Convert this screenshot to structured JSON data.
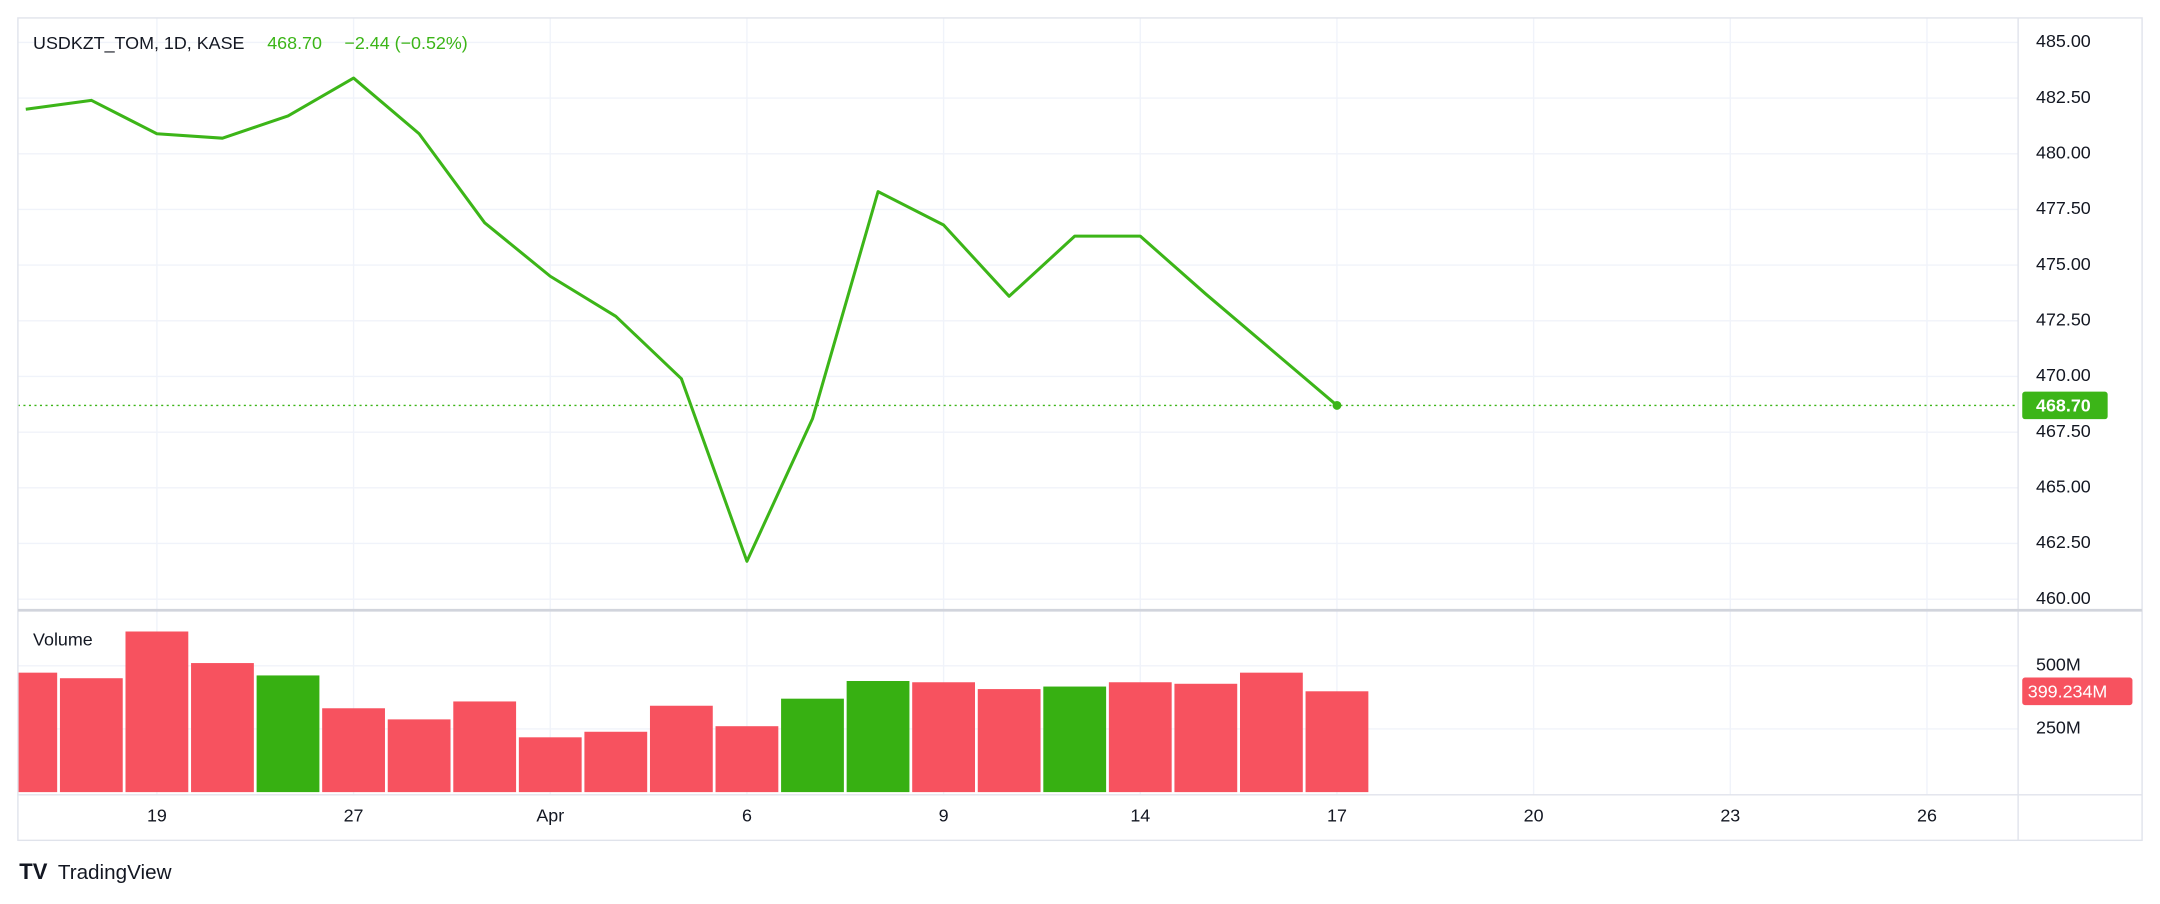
{
  "brand": "TradingView",
  "chart_data": [
    {
      "type": "line",
      "symbol": "USDKZT_TOM, 1D, KASE",
      "last": "468.70",
      "change": "−2.44 (−0.52%)",
      "x": [
        0,
        1,
        2,
        3,
        4,
        5,
        6,
        7,
        8,
        9,
        10,
        11,
        12,
        13,
        14,
        15,
        16,
        17,
        18,
        19,
        20
      ],
      "series": [
        {
          "color": "#3cb518",
          "values": [
            482.0,
            482.4,
            480.9,
            480.7,
            481.7,
            483.4,
            480.9,
            476.9,
            474.5,
            472.7,
            469.9,
            461.7,
            468.1,
            478.3,
            476.8,
            473.6,
            476.3,
            476.3,
            473.7,
            471.2,
            468.7
          ],
          "value_labels": [
            null,
            null,
            null,
            null,
            null,
            null,
            null,
            null,
            null,
            null,
            null,
            null,
            null,
            null,
            null,
            null,
            null,
            null,
            null,
            null,
            "468.70"
          ]
        }
      ],
      "xlim": [
        -0.12,
        30.39
      ],
      "ylim": [
        459.5,
        486.1
      ],
      "yticks": [
        {
          "value": 460,
          "label": "460.00"
        },
        {
          "value": 462.5,
          "label": "462.50"
        },
        {
          "value": 465,
          "label": "465.00"
        },
        {
          "value": 467.5,
          "label": "467.50"
        },
        {
          "value": 470,
          "label": "470.00"
        },
        {
          "value": 472.5,
          "label": "472.50"
        },
        {
          "value": 475,
          "label": "475.00"
        },
        {
          "value": 477.5,
          "label": "477.50"
        },
        {
          "value": 480,
          "label": "480.00"
        },
        {
          "value": 482.5,
          "label": "482.50"
        },
        {
          "value": 485,
          "label": "485.00"
        }
      ],
      "grid": true
    },
    {
      "type": "bar",
      "title": "Volume",
      "x": [
        0,
        1,
        2,
        3,
        4,
        5,
        6,
        7,
        8,
        9,
        10,
        11,
        12,
        13,
        14,
        15,
        16,
        17,
        18,
        19,
        20
      ],
      "series": [
        {
          "values": [
            473000000,
            451000000,
            636000000,
            511000000,
            462000000,
            332000000,
            288000000,
            359000000,
            217000000,
            239000000,
            342000000,
            261000000,
            370000000,
            440000000,
            435000000,
            408000000,
            418000000,
            435000000,
            429000000,
            473000000,
            399234000
          ],
          "colors": [
            "#f7525f",
            "#f7525f",
            "#f7525f",
            "#f7525f",
            "#37b012",
            "#f7525f",
            "#f7525f",
            "#f7525f",
            "#f7525f",
            "#f7525f",
            "#f7525f",
            "#f7525f",
            "#37b012",
            "#37b012",
            "#f7525f",
            "#f7525f",
            "#37b012",
            "#f7525f",
            "#f7525f",
            "#f7525f",
            "#f7525f"
          ],
          "value_labels": [
            null,
            null,
            null,
            null,
            null,
            null,
            null,
            null,
            null,
            null,
            null,
            null,
            null,
            null,
            null,
            null,
            null,
            null,
            null,
            null,
            "399.234M"
          ]
        }
      ],
      "xlim": [
        -0.12,
        30.39
      ],
      "ylim": [
        0,
        720000000
      ],
      "yticks": [
        {
          "value": 250000000,
          "label": "250M"
        },
        {
          "value": 500000000,
          "label": "500M"
        }
      ],
      "xticks": [
        {
          "value": 2,
          "label": "19"
        },
        {
          "value": 5,
          "label": "27"
        },
        {
          "value": 8,
          "label": "Apr"
        },
        {
          "value": 11,
          "label": "6"
        },
        {
          "value": 14,
          "label": "9"
        },
        {
          "value": 17,
          "label": "14"
        },
        {
          "value": 20,
          "label": "17"
        },
        {
          "value": 23,
          "label": "20"
        },
        {
          "value": 26,
          "label": "23"
        },
        {
          "value": 29,
          "label": "26"
        }
      ],
      "grid": true
    }
  ]
}
